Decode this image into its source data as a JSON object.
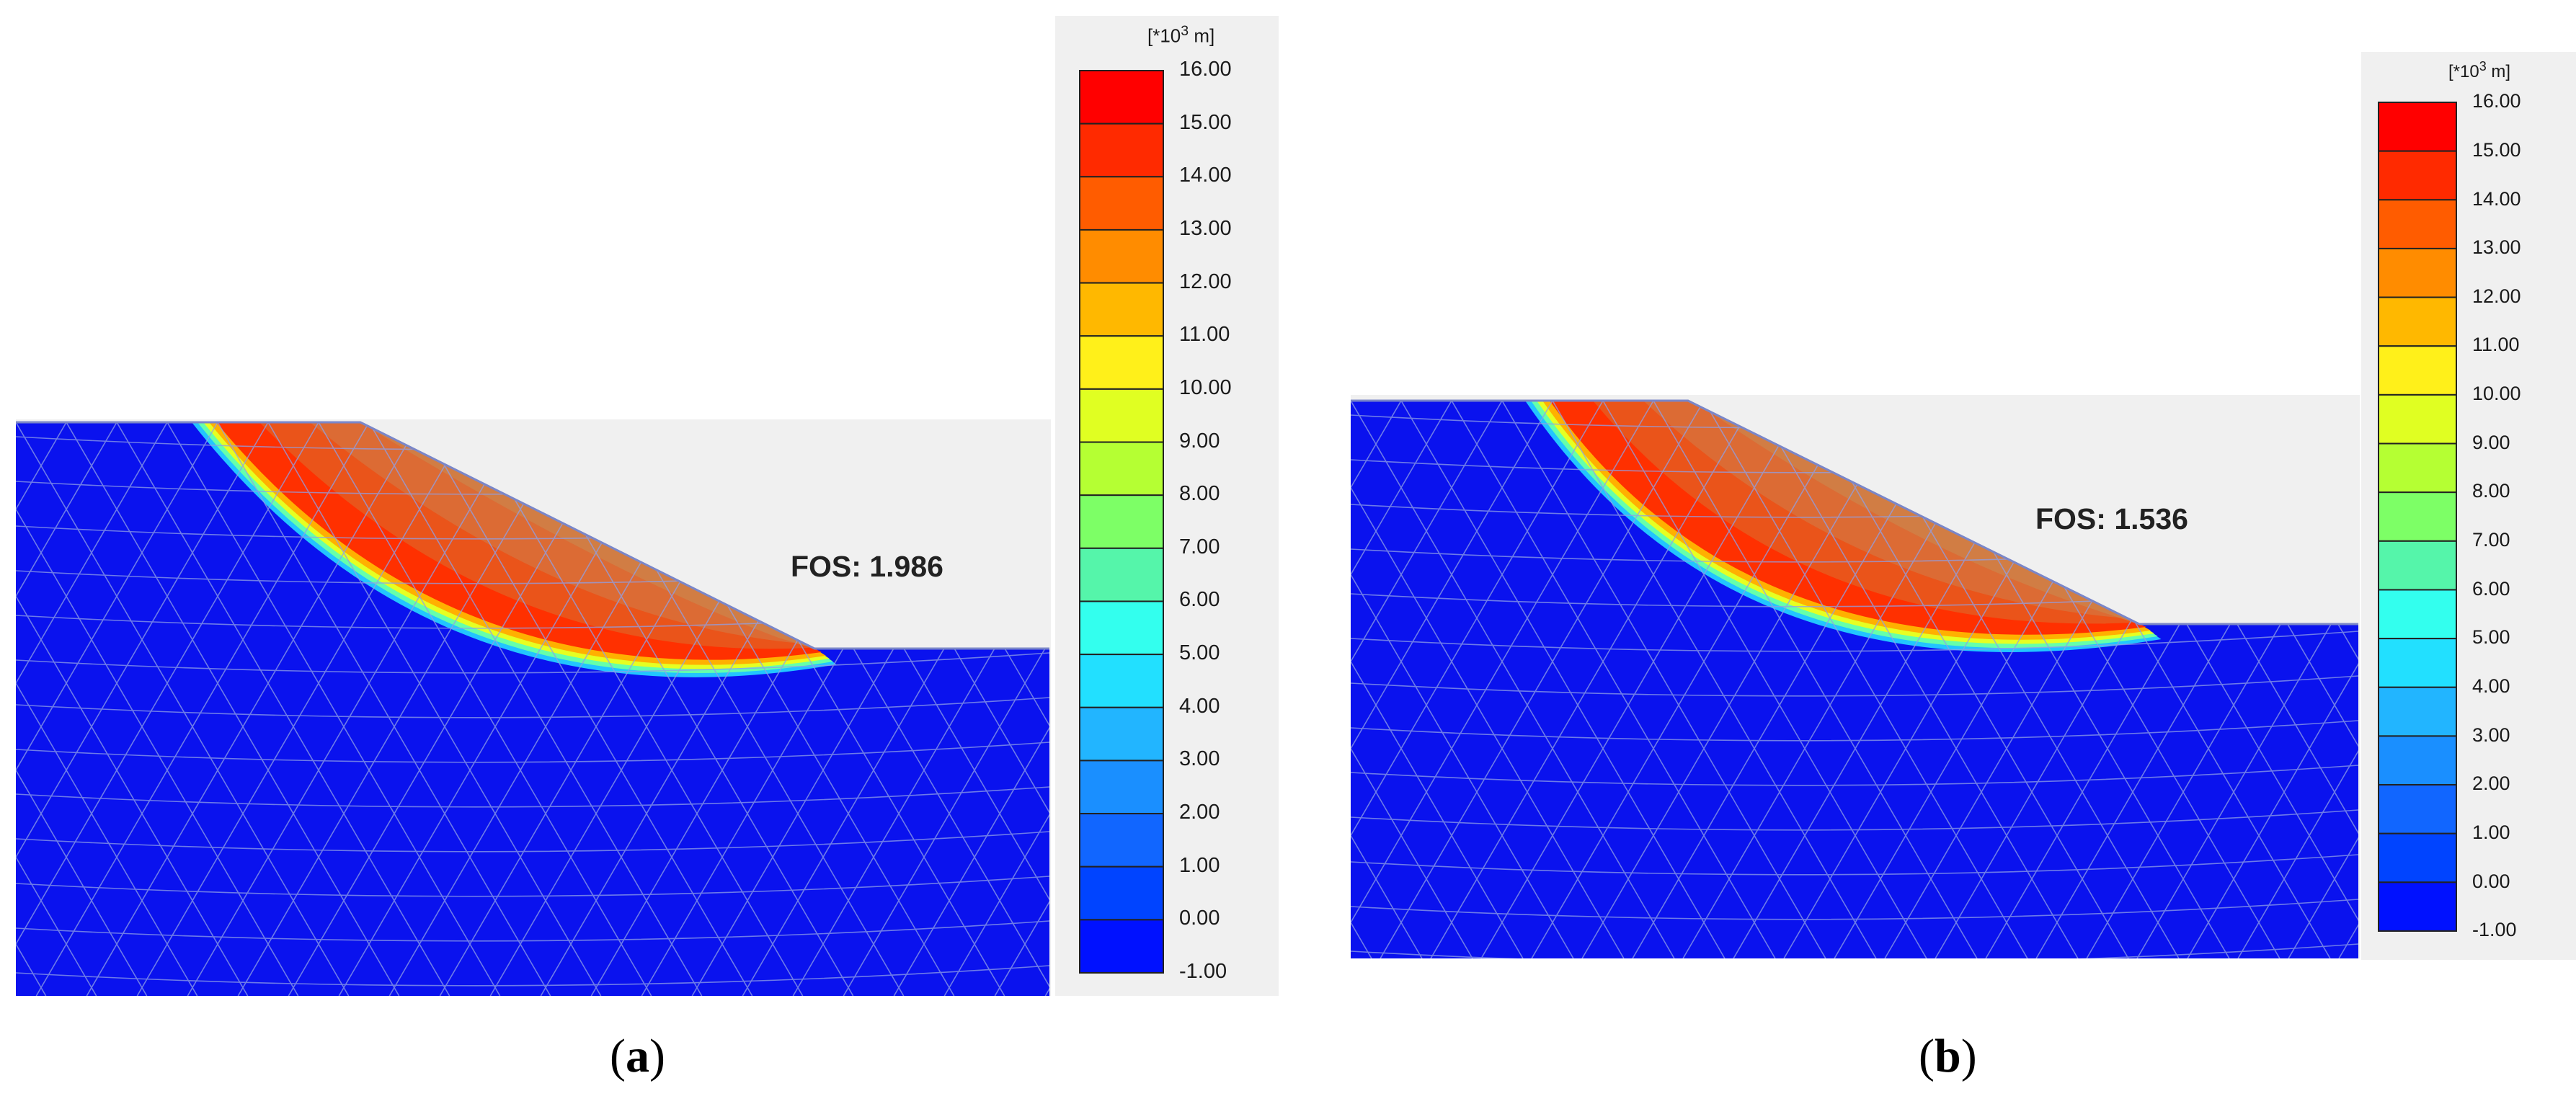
{
  "colors": {
    "soil_blue": "#0a12ee",
    "background_grey": "#f0f0f0",
    "mesh_line": "#8f9fe6",
    "slope_edge": "#7a86c8",
    "scale_colors": [
      "#0011ff",
      "#0044ff",
      "#1166ff",
      "#1a8fff",
      "#22b5ff",
      "#22e0ff",
      "#33ffee",
      "#55f5aa",
      "#7dff66",
      "#b5ff33",
      "#e0ff22",
      "#fff01a",
      "#ffb800",
      "#ff8c00",
      "#ff5c00",
      "#ff2a00",
      "#ff0000"
    ]
  },
  "panels": [
    {
      "id": "a",
      "fos_text": "FOS: 1.986",
      "caption_letter": "a",
      "unit_label": "[*10",
      "unit_exp": "3",
      "unit_suffix": " m]",
      "ticks": [
        "16.00",
        "15.00",
        "14.00",
        "13.00",
        "12.00",
        "11.00",
        "10.00",
        "9.00",
        "8.00",
        "7.00",
        "6.00",
        "5.00",
        "4.00",
        "3.00",
        "2.00",
        "1.00",
        "0.00",
        "-1.00"
      ]
    },
    {
      "id": "b",
      "fos_text": "FOS: 1.536",
      "caption_letter": "b",
      "unit_label": "[*10",
      "unit_exp": "3",
      "unit_suffix": " m]",
      "ticks": [
        "16.00",
        "15.00",
        "14.00",
        "13.00",
        "12.00",
        "11.00",
        "10.00",
        "9.00",
        "8.00",
        "7.00",
        "6.00",
        "5.00",
        "4.00",
        "3.00",
        "2.00",
        "1.00",
        "0.00",
        "-1.00"
      ]
    }
  ]
}
